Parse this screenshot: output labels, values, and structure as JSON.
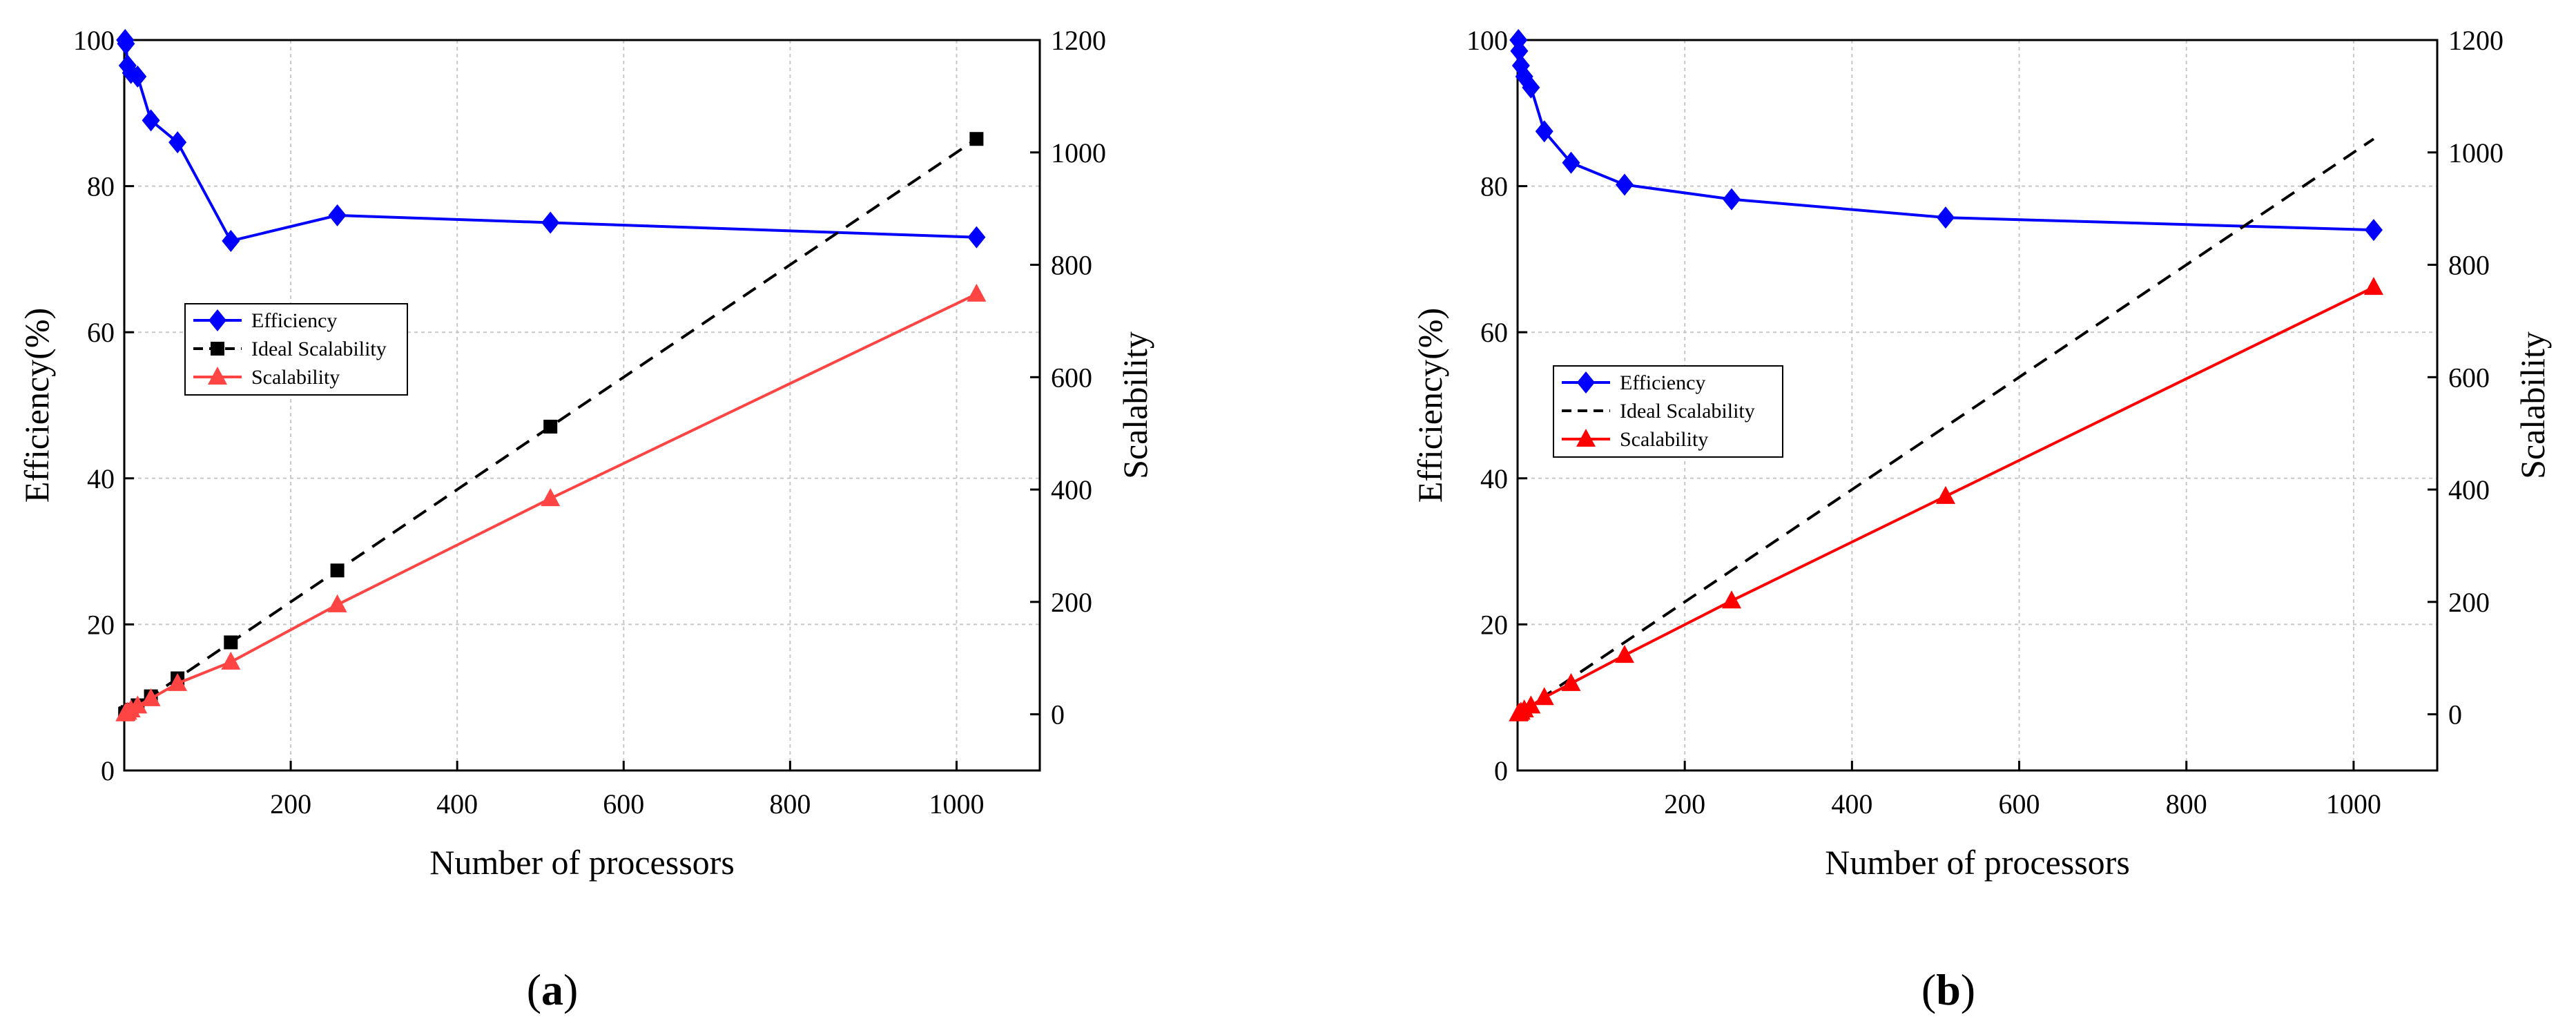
{
  "colors": {
    "efficiency": "#0000ff",
    "ideal": "#000000",
    "scalability_a": "#ff4444",
    "scalability_b": "#ff0000",
    "grid": "#c8c8c8"
  },
  "chart_data": [
    {
      "type": "line",
      "panel": "a",
      "caption_open": "(",
      "caption_letter": "a",
      "caption_close": ")",
      "xlabel": "Number of processors",
      "ylabel_left": "Efficiency(%)",
      "ylabel_right": "Scalability",
      "xlim": [
        0,
        1100
      ],
      "ylim_left": [
        0,
        100
      ],
      "ylim_right": [
        -100,
        1200
      ],
      "xticks": [
        200,
        400,
        600,
        800,
        1000
      ],
      "yticks_left": [
        0,
        20,
        40,
        60,
        80,
        100
      ],
      "yticks_right": [
        0,
        200,
        400,
        600,
        800,
        1000,
        1200
      ],
      "grid": true,
      "legend_position": "middle-left",
      "series": [
        {
          "name": "Efficiency",
          "axis": "left",
          "marker": "diamond",
          "line": "solid",
          "color_key": "efficiency",
          "x": [
            1,
            2,
            4,
            8,
            16,
            32,
            64,
            128,
            256,
            512,
            1024
          ],
          "y": [
            100,
            99.5,
            96.5,
            95.5,
            95,
            89,
            86,
            72.5,
            76,
            75,
            73
          ]
        },
        {
          "name": "Ideal Scalability",
          "axis": "right",
          "marker": "square",
          "line": "dashed",
          "color_key": "ideal",
          "x": [
            1,
            2,
            4,
            8,
            16,
            32,
            64,
            128,
            256,
            512,
            1024
          ],
          "y": [
            1,
            2,
            4,
            8,
            16,
            32,
            64,
            128,
            256,
            512,
            1024
          ]
        },
        {
          "name": "Scalability",
          "axis": "right",
          "marker": "triangle",
          "line": "solid",
          "color_key": "scalability_a",
          "x": [
            1,
            2,
            4,
            8,
            16,
            32,
            64,
            128,
            256,
            512,
            1024
          ],
          "y": [
            1,
            2,
            4,
            8,
            15,
            28,
            55,
            93,
            195,
            384,
            748
          ]
        }
      ]
    },
    {
      "type": "line",
      "panel": "b",
      "caption_open": "(",
      "caption_letter": "b",
      "caption_close": ")",
      "xlabel": "Number of processors",
      "ylabel_left": "Efficiency(%)",
      "ylabel_right": "Scalability",
      "xlim": [
        0,
        1100
      ],
      "ylim_left": [
        0,
        100
      ],
      "ylim_right": [
        -100,
        1200
      ],
      "xticks": [
        200,
        400,
        600,
        800,
        1000
      ],
      "yticks_left": [
        0,
        20,
        40,
        60,
        80,
        100
      ],
      "yticks_right": [
        0,
        200,
        400,
        600,
        800,
        1000,
        1200
      ],
      "grid": true,
      "legend_position": "middle-left",
      "series": [
        {
          "name": "Efficiency",
          "axis": "left",
          "marker": "diamond",
          "line": "solid",
          "color_key": "efficiency",
          "x": [
            1,
            2,
            4,
            8,
            16,
            32,
            64,
            128,
            256,
            512,
            1024
          ],
          "y": [
            100,
            98.5,
            96.5,
            95,
            93.5,
            87.5,
            83.2,
            80.2,
            78.2,
            75.7,
            74
          ]
        },
        {
          "name": "Ideal Scalability",
          "axis": "right",
          "marker": "none",
          "line": "dashed",
          "color_key": "ideal",
          "x": [
            1,
            2,
            4,
            8,
            16,
            32,
            64,
            128,
            256,
            512,
            1024
          ],
          "y": [
            1,
            2,
            4,
            8,
            16,
            32,
            64,
            128,
            256,
            512,
            1024
          ]
        },
        {
          "name": "Scalability",
          "axis": "right",
          "marker": "triangle",
          "line": "solid",
          "color_key": "scalability_b",
          "x": [
            1,
            2,
            4,
            8,
            16,
            32,
            64,
            128,
            256,
            512,
            1024
          ],
          "y": [
            1,
            2,
            4,
            8,
            15,
            30,
            55,
            105,
            202,
            388,
            760
          ]
        }
      ]
    }
  ]
}
